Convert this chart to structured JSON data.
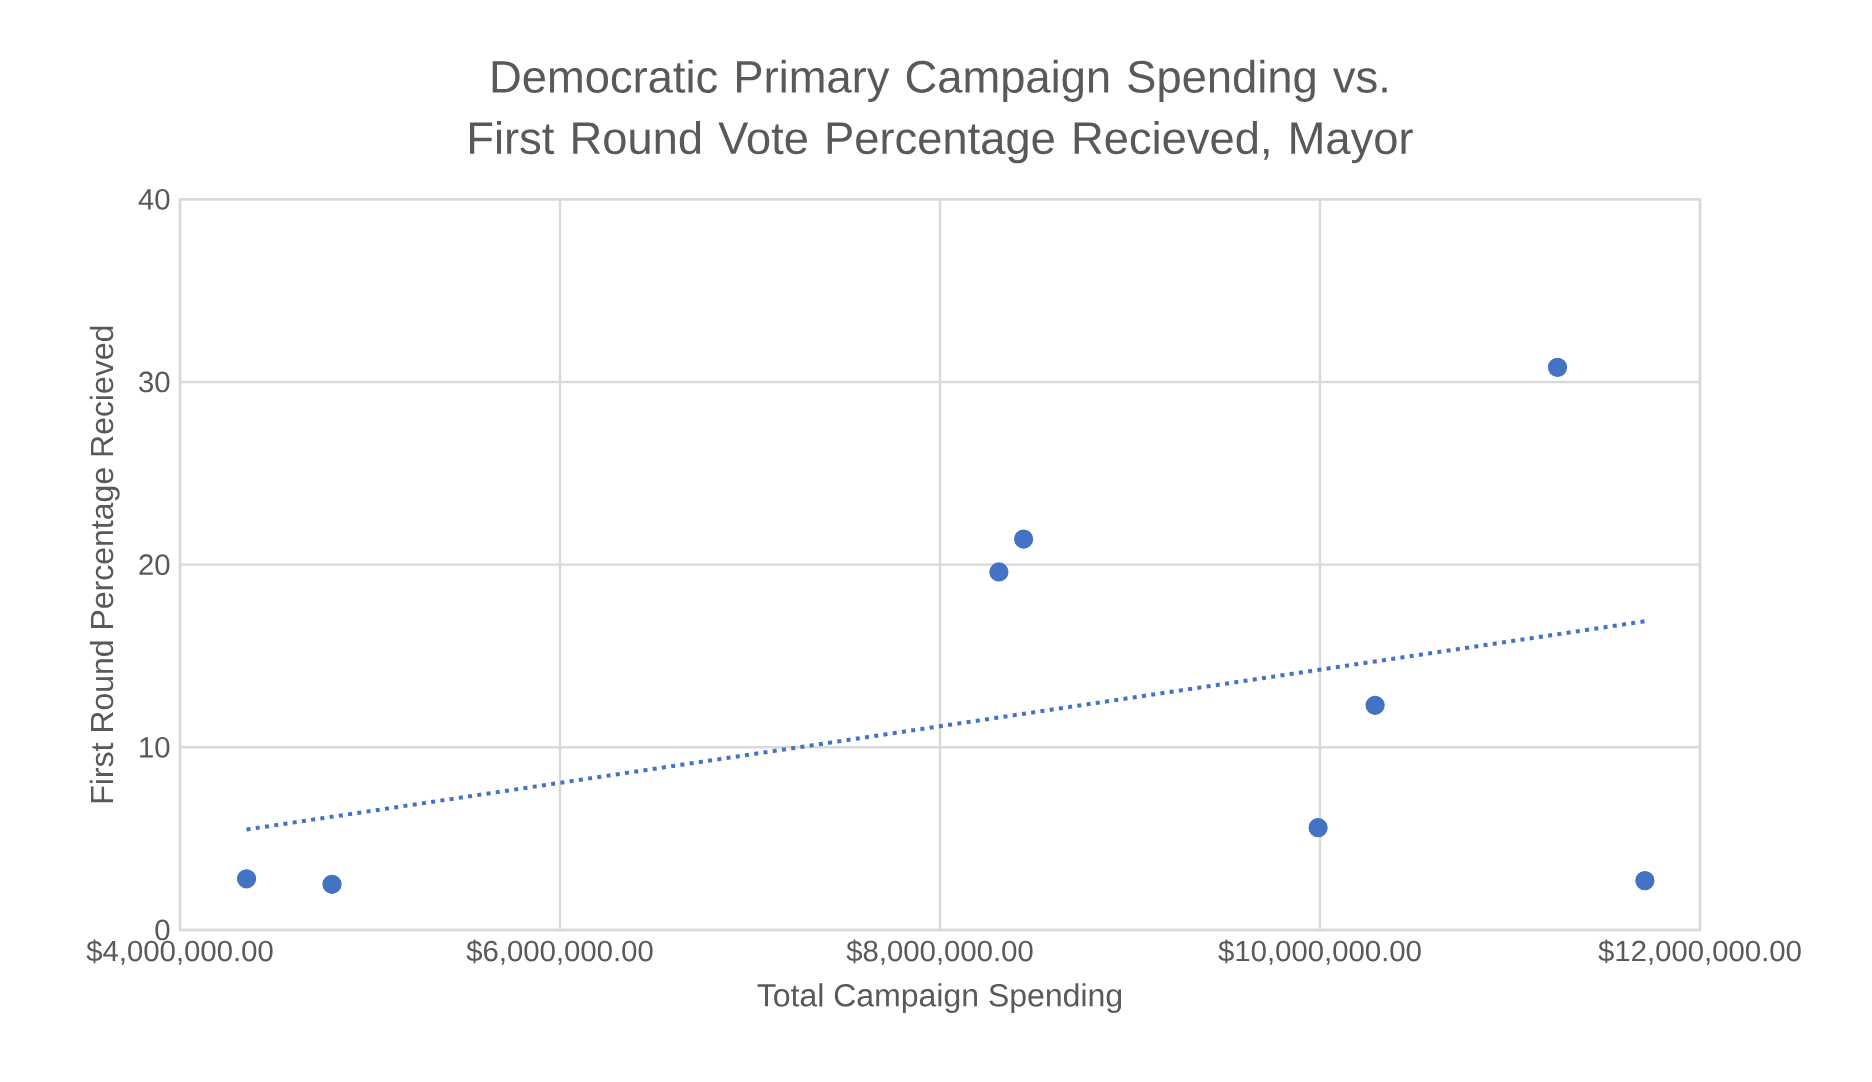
{
  "chart_data": {
    "type": "scatter",
    "title": "Democratic Primary Campaign Spending vs. First Round Vote Percentage Recieved, Mayor",
    "xlabel": "Total Campaign Spending",
    "ylabel": "First Round Percentage Recieved",
    "xlim": [
      4000000,
      12000000
    ],
    "xticks": [
      {
        "value": 4000000,
        "label": "$4,000,000.00"
      },
      {
        "value": 6000000,
        "label": "$6,000,000.00"
      },
      {
        "value": 8000000,
        "label": "$8,000,000.00"
      },
      {
        "value": 10000000,
        "label": "$10,000,000.00"
      },
      {
        "value": 12000000,
        "label": "$12,000,000.00"
      }
    ],
    "ylim": [
      0,
      40
    ],
    "yticks": [
      0,
      10,
      20,
      30,
      40
    ],
    "grid": true,
    "series": [
      {
        "color": "#4472c4",
        "marker": "circle",
        "x": [
          4350000,
          4800000,
          8310000,
          8440000,
          9990000,
          10290000,
          11250000,
          11710000
        ],
        "values": [
          2.8,
          2.5,
          19.6,
          21.4,
          5.6,
          12.3,
          30.8,
          2.7
        ]
      },
      {
        "type": "line",
        "marker": "none",
        "line_style": "dotted",
        "color": "#4472c4",
        "x": [
          4350000,
          11710000
        ],
        "values": [
          5.5,
          16.9
        ]
      }
    ]
  }
}
